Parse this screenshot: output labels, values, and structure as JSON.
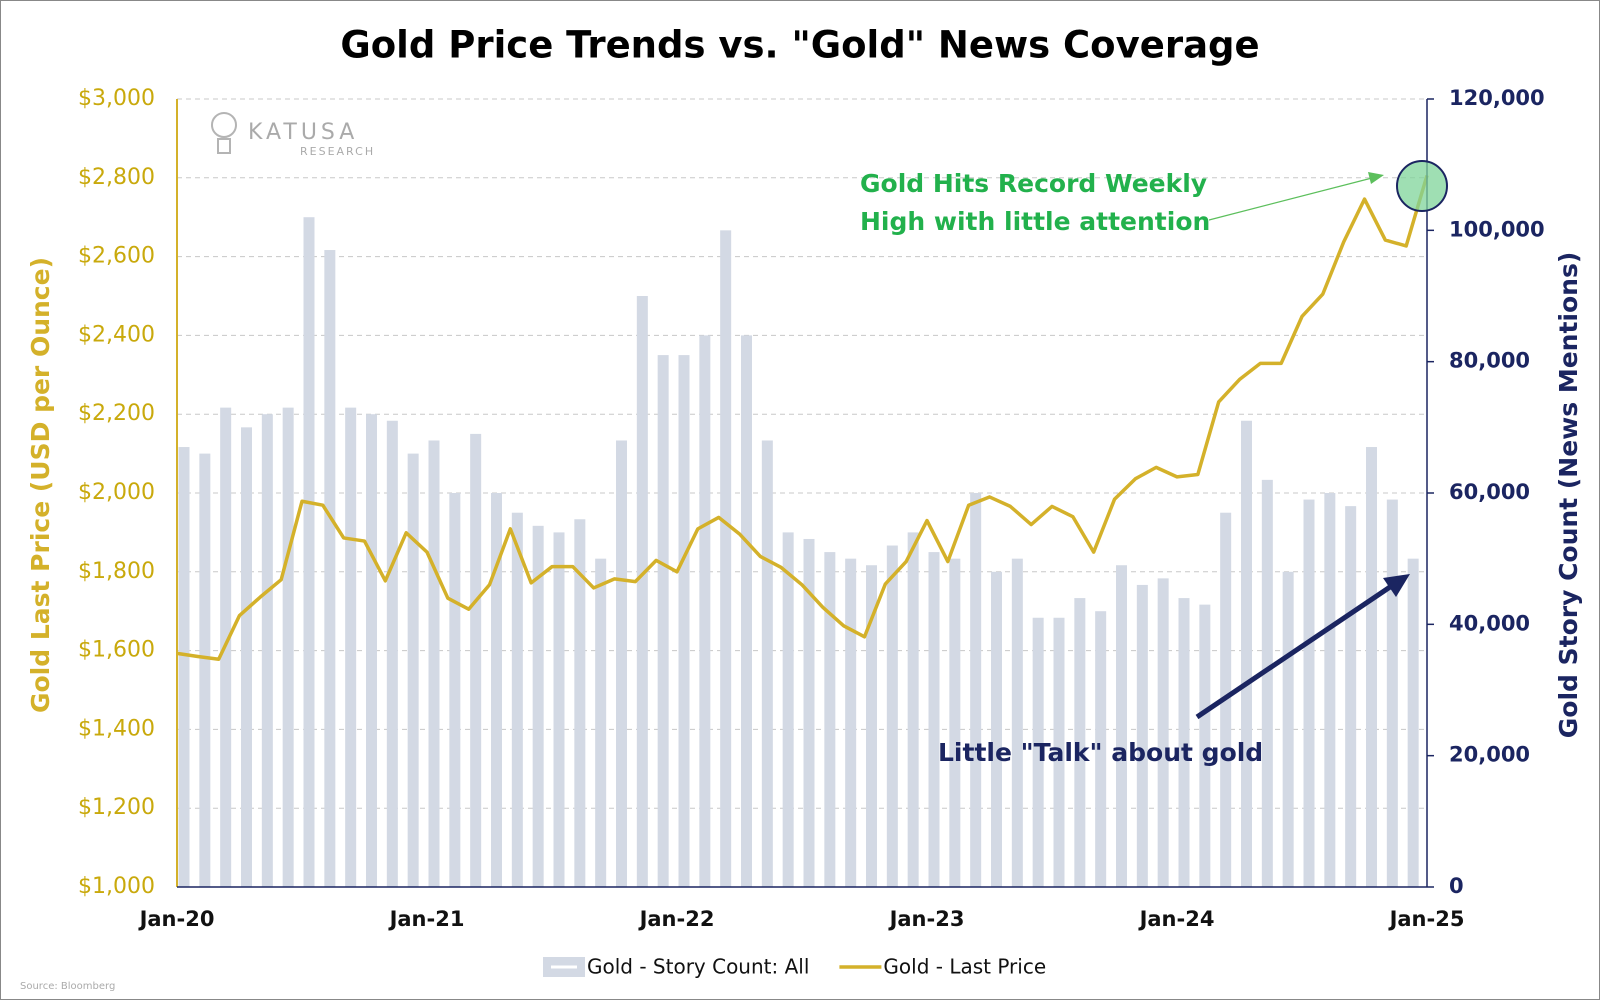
{
  "chart_data": {
    "type": "combo",
    "title": "Gold Price Trends vs. \"Gold\" News Coverage",
    "y_label": "Gold Last Price (USD per Ounce)",
    "y2_label": "Gold Story Count (News Mentions)",
    "source": "Source: Bloomberg",
    "watermark": [
      "KATUSA",
      "RESEARCH"
    ],
    "annotations": [
      "Gold Hits Record Weekly",
      "High with little attention",
      "Little \"Talk\" about gold"
    ],
    "categories": [
      "Jan-20",
      null,
      null,
      null,
      null,
      null,
      null,
      null,
      null,
      null,
      null,
      null,
      "Jan-21",
      null,
      null,
      null,
      null,
      null,
      null,
      null,
      null,
      null,
      null,
      null,
      "Jan-22",
      null,
      null,
      null,
      null,
      null,
      null,
      null,
      null,
      null,
      null,
      null,
      "Jan-23",
      null,
      null,
      null,
      null,
      null,
      null,
      null,
      null,
      null,
      null,
      null,
      "Jan-24",
      null,
      null,
      null,
      null,
      null,
      null,
      null,
      null,
      null,
      null,
      null,
      "Jan-25"
    ],
    "series": [
      {
        "name": "Gold - Story Count: All",
        "type": "bar",
        "axis": "y2",
        "color": "#d3d9e4",
        "values": [
          67000,
          66000,
          73000,
          70000,
          72000,
          73000,
          102000,
          97000,
          73000,
          72000,
          71000,
          66000,
          68000,
          60000,
          69000,
          60000,
          57000,
          55000,
          54000,
          56000,
          50000,
          68000,
          90000,
          81000,
          81000,
          84000,
          100000,
          84000,
          68000,
          54000,
          53000,
          51000,
          50000,
          49000,
          52000,
          54000,
          51000,
          50000,
          60000,
          48000,
          50000,
          41000,
          41000,
          44000,
          42000,
          49000,
          46000,
          47000,
          44000,
          43000,
          57000,
          71000,
          62000,
          48000,
          59000,
          60000,
          58000,
          67000,
          59000,
          50000,
          null
        ]
      },
      {
        "name": "Gold - Last Price",
        "type": "line",
        "axis": "y",
        "color": "#d4b12a",
        "values": [
          1593,
          1585,
          1578,
          1689,
          1736,
          1780,
          1979,
          1969,
          1886,
          1878,
          1777,
          1899,
          1850,
          1733,
          1705,
          1767,
          1909,
          1772,
          1813,
          1813,
          1759,
          1782,
          1775,
          1829,
          1800,
          1909,
          1938,
          1896,
          1839,
          1811,
          1767,
          1710,
          1663,
          1635,
          1769,
          1826,
          1930,
          1826,
          1969,
          1990,
          1966,
          1920,
          1966,
          1940,
          1850,
          1984,
          2036,
          2065,
          2041,
          2047,
          2231,
          2288,
          2329,
          2329,
          2448,
          2505,
          2637,
          2746,
          2642,
          2627,
          2806
        ]
      }
    ],
    "ylim": [
      1000,
      3000
    ],
    "yticks": [
      {
        "value": 1000,
        "label": "$1,000"
      },
      {
        "value": 1200,
        "label": "$1,200"
      },
      {
        "value": 1400,
        "label": "$1,400"
      },
      {
        "value": 1600,
        "label": "$1,600"
      },
      {
        "value": 1800,
        "label": "$1,800"
      },
      {
        "value": 2000,
        "label": "$2,000"
      },
      {
        "value": 2200,
        "label": "$2,200"
      },
      {
        "value": 2400,
        "label": "$2,400"
      },
      {
        "value": 2600,
        "label": "$2,600"
      },
      {
        "value": 2800,
        "label": "$2,800"
      },
      {
        "value": 3000,
        "label": "$3,000"
      }
    ],
    "y2lim": [
      0,
      120000
    ],
    "y2ticks": [
      0,
      {
        "value": 20000,
        "label": "20,000"
      },
      {
        "value": 40000,
        "label": "40,000"
      },
      {
        "value": 60000,
        "label": "60,000"
      },
      {
        "value": 80000,
        "label": "80,000"
      },
      {
        "value": 100000,
        "label": "100,000"
      },
      {
        "value": 120000,
        "label": "120,000"
      }
    ],
    "grid": true,
    "legend": "bottom"
  }
}
